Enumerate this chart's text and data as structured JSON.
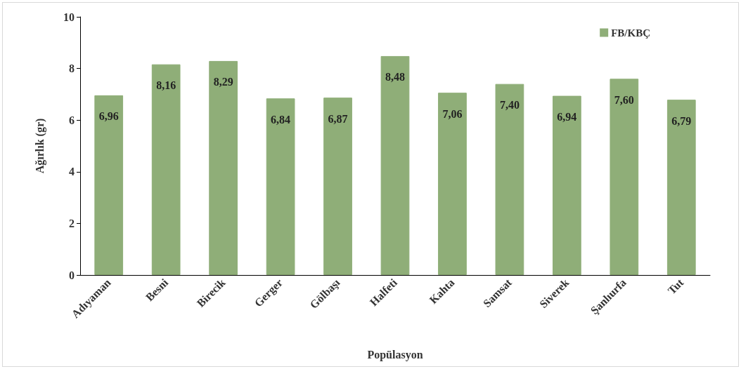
{
  "chart_data": {
    "type": "bar",
    "xlabel": "Popülasyon",
    "ylabel": "Ağırlık (gr)",
    "categories": [
      "Adıyaman",
      "Besni",
      "Birecik",
      "Gerger",
      "Gölbaşı",
      "Halfeti",
      "Kahta",
      "Samsat",
      "Siverek",
      "Şanlıurfa",
      "Tut"
    ],
    "series": [
      {
        "name": "FB/KBÇ",
        "color": "#8fae78",
        "values": [
          6.96,
          8.16,
          8.29,
          6.84,
          6.87,
          8.48,
          7.06,
          7.4,
          6.94,
          7.6,
          6.79
        ]
      }
    ],
    "value_labels": [
      "6,96",
      "8,16",
      "8,29",
      "6,84",
      "6,87",
      "8,48",
      "7,06",
      "7,40",
      "6,94",
      "7,60",
      "6,79"
    ],
    "ylim": [
      0,
      10
    ],
    "yticks": [
      0,
      2,
      4,
      6,
      8,
      10
    ],
    "grid": false,
    "legend": "top right"
  }
}
